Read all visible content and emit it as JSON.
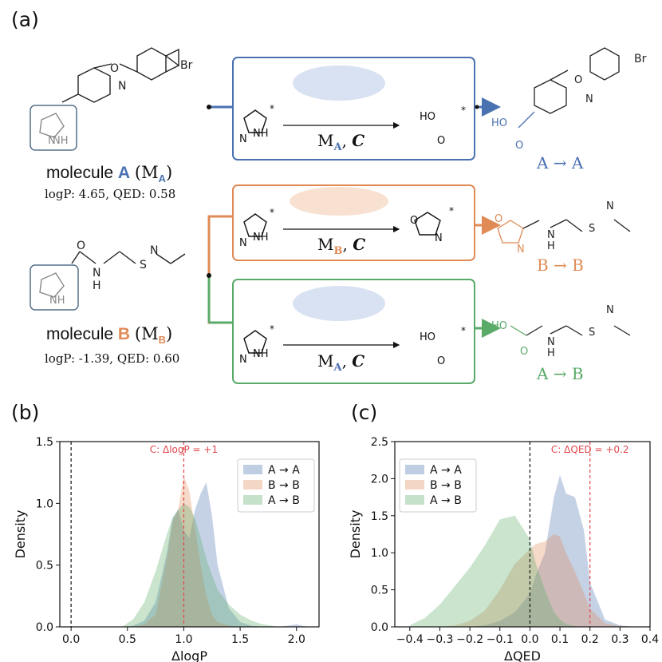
{
  "panel_labels": {
    "a": "(a)",
    "b": "(b)",
    "c": "(c)"
  },
  "molecule_a": {
    "prefix": "molecule ",
    "letter": "A",
    "sym": "(M",
    "sub": "A",
    "close": ")",
    "props": "logP: 4.65,  QED: 0.58"
  },
  "molecule_b": {
    "prefix": "molecule ",
    "letter": "B",
    "sym": "(M",
    "sub": "B",
    "close": ")",
    "props": "logP: -1.39,  QED: 0.60"
  },
  "rows": [
    {
      "model": "M",
      "model_sub": "A",
      "cond": "C",
      "result": "A → A",
      "color": "#4a72b0"
    },
    {
      "model": "M",
      "model_sub": "B",
      "cond": "C",
      "result": "B → B",
      "color": "#e08a56"
    },
    {
      "model": "M",
      "model_sub": "A",
      "cond": "C",
      "result": "A → B",
      "color": "#5aaa68"
    }
  ],
  "atoms": {
    "br": "Br",
    "o": "O",
    "n": "N",
    "nh": "NH",
    "ho": "HO",
    "h": "H",
    "s": "S",
    "star": "*"
  },
  "colors": {
    "blue": "#4a72b0",
    "orange": "#e08a56",
    "green": "#5aaa68",
    "red": "#e0474c"
  },
  "chart_data": [
    {
      "type": "area",
      "title": "",
      "xlabel": "ΔlogP",
      "ylabel": "Density",
      "xlim": [
        -0.1,
        2.2
      ],
      "ylim": [
        0,
        1.5
      ],
      "xticks": [
        "0.0",
        "0.5",
        "1.0",
        "1.5",
        "2.0"
      ],
      "yticks": [
        "0.0",
        "0.5",
        "1.0",
        "1.5"
      ],
      "annotation": "C: ΔlogP = +1",
      "reference_lines": [
        {
          "x": 0.0,
          "style": "black-dashed"
        },
        {
          "x": 1.0,
          "style": "red-dashed"
        }
      ],
      "legend": "top-right",
      "x": [
        0.45,
        0.55,
        0.65,
        0.75,
        0.85,
        0.9,
        0.95,
        1.0,
        1.05,
        1.1,
        1.15,
        1.2,
        1.25,
        1.3,
        1.4,
        1.5,
        1.6,
        1.7,
        1.85,
        2.0,
        2.1
      ],
      "series": [
        {
          "name": "A → A",
          "color": "#4a72b0",
          "values": [
            0.0,
            0.01,
            0.05,
            0.2,
            0.6,
            0.88,
            0.95,
            0.78,
            0.72,
            0.95,
            1.08,
            1.17,
            0.9,
            0.5,
            0.15,
            0.04,
            0.01,
            0.0,
            0.0,
            0.02,
            0.0
          ]
        },
        {
          "name": "B → B",
          "color": "#e08a56",
          "values": [
            0.0,
            0.0,
            0.02,
            0.1,
            0.55,
            0.85,
            0.95,
            1.22,
            1.1,
            0.8,
            0.5,
            0.25,
            0.1,
            0.04,
            0.01,
            0.0,
            0.0,
            0.0,
            0.0,
            0.0,
            0.0
          ]
        },
        {
          "name": "A → B",
          "color": "#5aaa68",
          "values": [
            0.0,
            0.06,
            0.2,
            0.45,
            0.75,
            0.88,
            0.95,
            1.0,
            0.97,
            0.88,
            0.72,
            0.55,
            0.42,
            0.3,
            0.18,
            0.1,
            0.05,
            0.02,
            0.0,
            0.0,
            0.0
          ]
        }
      ]
    },
    {
      "type": "area",
      "title": "",
      "xlabel": "ΔQED",
      "ylabel": "Density",
      "xlim": [
        -0.45,
        0.4
      ],
      "ylim": [
        0,
        2.5
      ],
      "xticks": [
        "−0.4",
        "−0.3",
        "−0.2",
        "−0.1",
        "0.0",
        "0.1",
        "0.2",
        "0.3",
        "0.4"
      ],
      "yticks": [
        "0.0",
        "0.5",
        "1.0",
        "1.5",
        "2.0",
        "2.5"
      ],
      "annotation": "C: ΔQED = +0.2",
      "reference_lines": [
        {
          "x": 0.0,
          "style": "black-dashed"
        },
        {
          "x": 0.2,
          "style": "red-dashed"
        }
      ],
      "legend": "top-left",
      "x": [
        -0.4,
        -0.35,
        -0.3,
        -0.25,
        -0.2,
        -0.15,
        -0.1,
        -0.05,
        0.0,
        0.02,
        0.05,
        0.08,
        0.1,
        0.12,
        0.15,
        0.18,
        0.2,
        0.25,
        0.3,
        0.35
      ],
      "series": [
        {
          "name": "A → A",
          "color": "#4a72b0",
          "values": [
            0.0,
            0.0,
            0.0,
            0.0,
            0.0,
            0.02,
            0.08,
            0.2,
            0.45,
            0.7,
            1.0,
            1.75,
            2.05,
            1.8,
            1.75,
            1.3,
            0.6,
            0.1,
            0.02,
            0.0
          ]
        },
        {
          "name": "B → B",
          "color": "#e08a56",
          "values": [
            0.0,
            0.0,
            0.0,
            0.02,
            0.08,
            0.22,
            0.5,
            0.85,
            1.05,
            1.12,
            1.15,
            1.25,
            1.22,
            1.0,
            0.75,
            0.45,
            0.25,
            0.05,
            0.01,
            0.0
          ]
        },
        {
          "name": "A → B",
          "color": "#5aaa68",
          "values": [
            0.02,
            0.12,
            0.3,
            0.55,
            0.8,
            1.1,
            1.45,
            1.5,
            1.18,
            0.85,
            0.5,
            0.2,
            0.1,
            0.04,
            0.01,
            0.0,
            0.0,
            0.0,
            0.0,
            0.0
          ]
        }
      ]
    }
  ]
}
